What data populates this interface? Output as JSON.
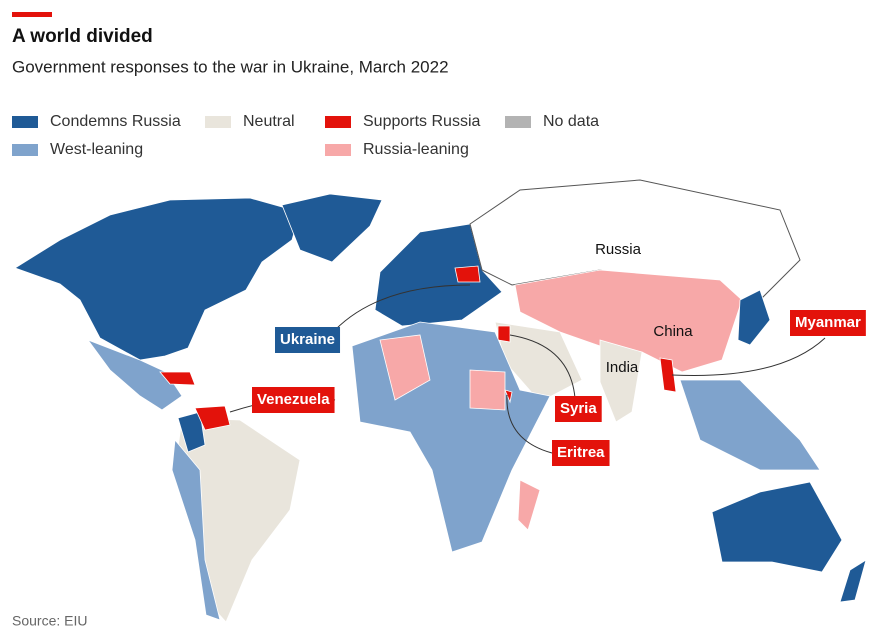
{
  "header": {
    "title": "A world divided",
    "subtitle": "Government responses to the war in Ukraine, March 2022"
  },
  "legend": [
    {
      "label": "Condemns Russia",
      "color": "#1f5a96"
    },
    {
      "label": "West-leaning",
      "color": "#7fa3cc"
    },
    {
      "label": "Neutral",
      "color": "#e9e5dc"
    },
    {
      "label": "Supports Russia",
      "color": "#e3120b"
    },
    {
      "label": "Russia-leaning",
      "color": "#f7a8a8"
    },
    {
      "label": "No data",
      "color": "#b3b3b3"
    }
  ],
  "map": {
    "labels": [
      {
        "text": "Russia"
      },
      {
        "text": "China"
      },
      {
        "text": "India"
      }
    ],
    "callouts": [
      {
        "text": "Ukraine",
        "color": "#1f5a96"
      },
      {
        "text": "Venezuela",
        "color": "#e3120b"
      },
      {
        "text": "Syria",
        "color": "#e3120b"
      },
      {
        "text": "Eritrea",
        "color": "#e3120b"
      },
      {
        "text": "Myanmar",
        "color": "#e3120b"
      }
    ]
  },
  "footer": {
    "source": "Source: EIU"
  }
}
